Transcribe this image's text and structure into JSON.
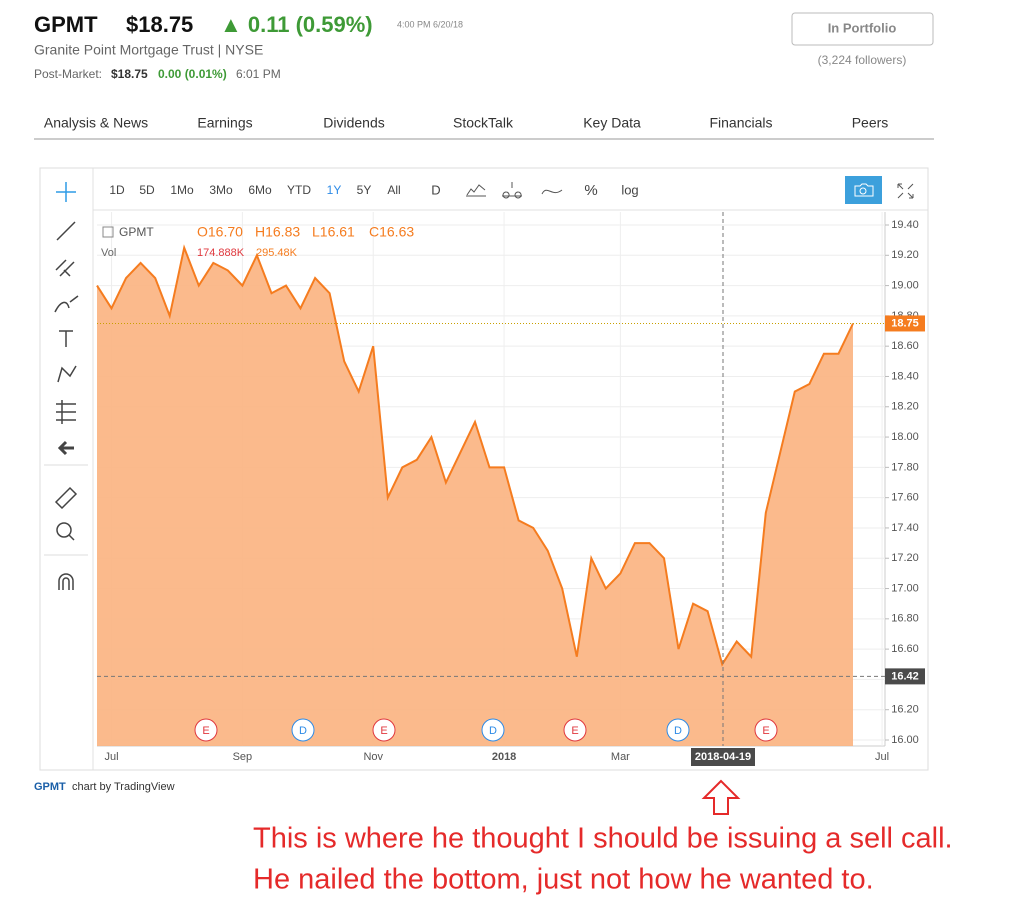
{
  "header": {
    "symbol": "GPMT",
    "price": "$18.75",
    "change": "▲ 0.11 (0.59%)",
    "time": "4:00 PM 6/20/18",
    "company": "Granite Point Mortgage Trust  |  NYSE",
    "post_market_label": "Post-Market:",
    "post_market_price": "$18.75",
    "post_market_change": "0.00 (0.01%)",
    "post_market_time": "6:01 PM",
    "portfolio_button": "In Portfolio",
    "followers": "(3,224 followers)"
  },
  "tabs": [
    "Analysis & News",
    "Earnings",
    "Dividends",
    "StockTalk",
    "Key Data",
    "Financials",
    "Peers"
  ],
  "toolbar": {
    "ranges": [
      "1D",
      "5D",
      "1Mo",
      "3Mo",
      "6Mo",
      "YTD",
      "1Y",
      "5Y",
      "All"
    ],
    "interval": "D",
    "percent": "%",
    "log": "log"
  },
  "chart_data": {
    "type": "area",
    "legend": {
      "symbol": "GPMT",
      "open": "O16.70",
      "high": "H16.83",
      "low": "L16.61",
      "close": "C16.63",
      "volume": "Vol",
      "volume_value": "174.888K",
      "volume_ma": "295.48K"
    },
    "categories": [
      null,
      "Jul",
      null,
      null,
      null,
      null,
      null,
      null,
      null,
      null,
      "Sep",
      null,
      null,
      null,
      null,
      null,
      null,
      null,
      null,
      "Nov",
      null,
      null,
      null,
      null,
      null,
      null,
      null,
      null,
      "2018",
      null,
      null,
      null,
      null,
      null,
      null,
      null,
      "Mar",
      null,
      null,
      null,
      null,
      null,
      null,
      null,
      null,
      null,
      null,
      null,
      null,
      null,
      null,
      null,
      null,
      null,
      "Jul"
    ],
    "series": [
      {
        "name": "GPMT",
        "color": "#f57c1f",
        "area_color": "#fbb27f",
        "values": [
          19.0,
          18.85,
          19.05,
          19.15,
          19.05,
          18.8,
          19.25,
          19.0,
          19.15,
          19.1,
          19.0,
          19.2,
          18.95,
          19.0,
          18.85,
          19.05,
          18.95,
          18.5,
          18.3,
          18.6,
          17.6,
          17.8,
          17.85,
          18.0,
          17.7,
          17.9,
          18.1,
          17.8,
          17.8,
          17.45,
          17.4,
          17.25,
          17.0,
          16.55,
          17.2,
          17.0,
          17.1,
          17.3,
          17.3,
          17.2,
          16.6,
          16.9,
          16.85,
          16.5,
          16.65,
          16.55,
          17.5,
          17.9,
          18.3,
          18.35,
          18.55,
          18.55,
          18.75,
          null,
          null
        ]
      }
    ],
    "ylim": [
      16.0,
      19.4
    ],
    "yticks": [
      {
        "value": 16.0,
        "label": "16.00"
      },
      {
        "value": 16.2,
        "label": "16.20"
      },
      {
        "value": 16.4,
        "label": "16.40"
      },
      {
        "value": 16.6,
        "label": "16.60"
      },
      {
        "value": 16.8,
        "label": "16.80"
      },
      {
        "value": 17.0,
        "label": "17.00"
      },
      {
        "value": 17.2,
        "label": "17.20"
      },
      {
        "value": 17.4,
        "label": "17.40"
      },
      {
        "value": 17.6,
        "label": "17.60"
      },
      {
        "value": 17.8,
        "label": "17.80"
      },
      {
        "value": 18.0,
        "label": "18.00"
      },
      {
        "value": 18.2,
        "label": "18.20"
      },
      {
        "value": 18.4,
        "label": "18.40"
      },
      {
        "value": 18.6,
        "label": "18.60"
      },
      {
        "value": 18.8,
        "label": "18.80"
      },
      {
        "value": 19.0,
        "label": "19.00"
      },
      {
        "value": 19.2,
        "label": "19.20"
      },
      {
        "value": 19.4,
        "label": "19.40"
      }
    ],
    "grid": true,
    "last_price": 18.75,
    "crosshair": {
      "price": 16.42,
      "date": "2018-04-19"
    },
    "events": [
      "E",
      "D",
      "E",
      "D",
      "E",
      "D",
      "E"
    ]
  },
  "footer": {
    "symbol": "GPMT",
    "text": "chart by TradingView"
  },
  "annotation": [
    "This is where he thought I should be issuing a sell call.",
    "He nailed the bottom, just not how he wanted to."
  ]
}
